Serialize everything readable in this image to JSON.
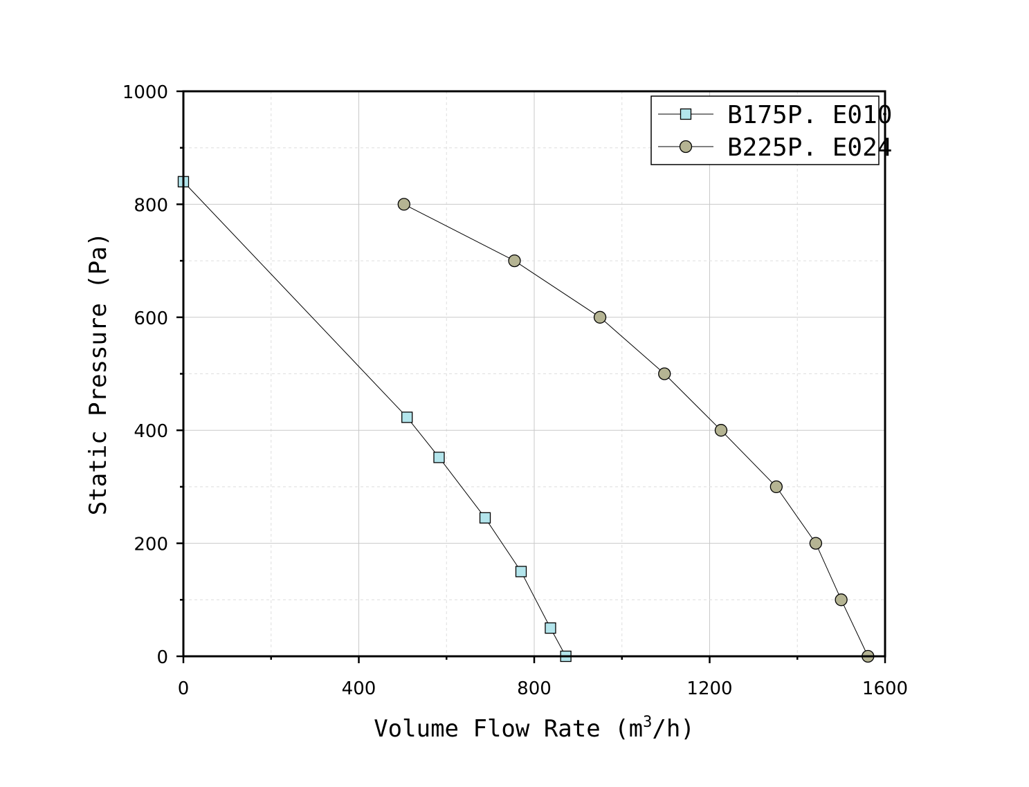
{
  "chart_data": {
    "type": "line",
    "title": "",
    "xlabel_main": "Volume Flow Rate (m",
    "xlabel_sup": "3",
    "xlabel_tail": "/h)",
    "ylabel": "Static Pressure (Pa)",
    "xlim": [
      0,
      1600
    ],
    "ylim": [
      0,
      1000
    ],
    "xticks": [
      0,
      400,
      800,
      1200,
      1600
    ],
    "xtick_labels": [
      "0",
      "400",
      "800",
      "1200",
      "1600"
    ],
    "yticks": [
      0,
      200,
      400,
      600,
      800,
      1000
    ],
    "ytick_labels": [
      "0",
      "200",
      "400",
      "600",
      "800",
      "1000"
    ],
    "grid": true,
    "legend_position": "top-right",
    "series": [
      {
        "name": "B175P. E010",
        "marker": "square",
        "color": "#b3e5ec",
        "x": [
          0,
          510,
          583,
          688,
          770,
          837,
          872
        ],
        "y": [
          840,
          423,
          352,
          245,
          150,
          50,
          0
        ]
      },
      {
        "name": "B225P. E024",
        "marker": "circle",
        "color": "#b5b493",
        "x": [
          503,
          755,
          950,
          1097,
          1226,
          1352,
          1442,
          1500,
          1561
        ],
        "y": [
          800,
          700,
          600,
          500,
          400,
          300,
          200,
          100,
          0
        ]
      }
    ]
  }
}
